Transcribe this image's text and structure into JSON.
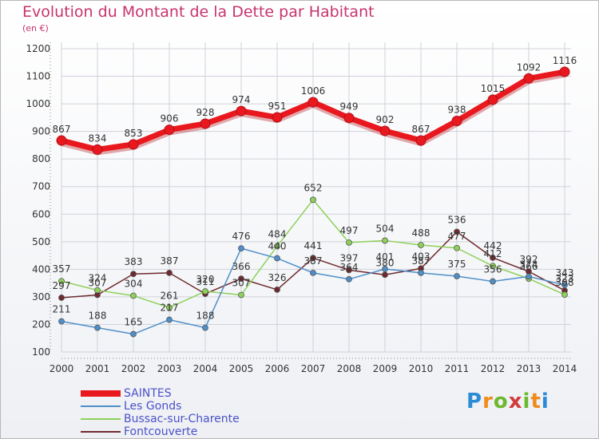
{
  "header": {
    "title": "Evolution du Montant de la Dette par Habitant",
    "unit": "(en €)"
  },
  "logo": {
    "text": "Proxiti"
  },
  "colors": {
    "title": "#c8336d",
    "legend_text": "#4b52c8",
    "grid": "#cfd2da",
    "axis": "#333333"
  },
  "chart_data": {
    "type": "line",
    "title": "Evolution du Montant de la Dette par Habitant",
    "ylabel": "(en €)",
    "xlabel": "",
    "x": [
      "2000",
      "2001",
      "2002",
      "2003",
      "2004",
      "2005",
      "2006",
      "2007",
      "2008",
      "2009",
      "2010",
      "2011",
      "2012",
      "2013",
      "2014"
    ],
    "ylim": [
      100,
      1200
    ],
    "yticks": [
      100,
      200,
      300,
      400,
      500,
      600,
      700,
      800,
      900,
      1000,
      1100,
      1200
    ],
    "grid": true,
    "legend_position": "bottom-left",
    "series": [
      {
        "name": "SAINTES",
        "color": "#e8181e",
        "values": [
          867,
          834,
          853,
          906,
          928,
          974,
          951,
          1006,
          949,
          902,
          867,
          938,
          1015,
          1092,
          1116
        ]
      },
      {
        "name": "Les Gonds",
        "color": "#4f8fc9",
        "values": [
          211,
          188,
          165,
          217,
          188,
          476,
          440,
          387,
          364,
          401,
          387,
          375,
          356,
          374,
          343
        ]
      },
      {
        "name": "Bussac-sur-Charente",
        "color": "#8ed15a",
        "values": [
          357,
          324,
          304,
          261,
          320,
          307,
          484,
          652,
          497,
          504,
          488,
          477,
          412,
          366,
          308
        ]
      },
      {
        "name": "Fontcouverte",
        "color": "#6e2a2f",
        "values": [
          297,
          307,
          383,
          387,
          311,
          366,
          326,
          441,
          397,
          380,
          403,
          536,
          442,
          392,
          323
        ]
      }
    ],
    "data_labels": [
      {
        "series": 0,
        "labels": [
          "867",
          "834",
          "853",
          "906",
          "928",
          "974",
          "951",
          "1006",
          "949",
          "902",
          "867",
          "938",
          "1015",
          "1092",
          "1116"
        ]
      },
      {
        "series": 1,
        "labels": [
          "211",
          "188",
          "165",
          "217",
          "188",
          "476",
          "440",
          "387",
          "364",
          "401",
          "387",
          "375",
          "356",
          "374",
          "343"
        ]
      },
      {
        "series": 2,
        "labels": [
          "357",
          "324",
          "304",
          "261",
          "320",
          "307",
          "484",
          "652",
          "497",
          "504",
          "488",
          "477",
          "412",
          "366",
          "308"
        ]
      },
      {
        "series": 3,
        "labels": [
          "297",
          "307",
          "383",
          "387",
          "311",
          "366",
          "326",
          "441",
          "397",
          "380",
          "403",
          "536",
          "442",
          "392",
          "323"
        ]
      }
    ]
  }
}
